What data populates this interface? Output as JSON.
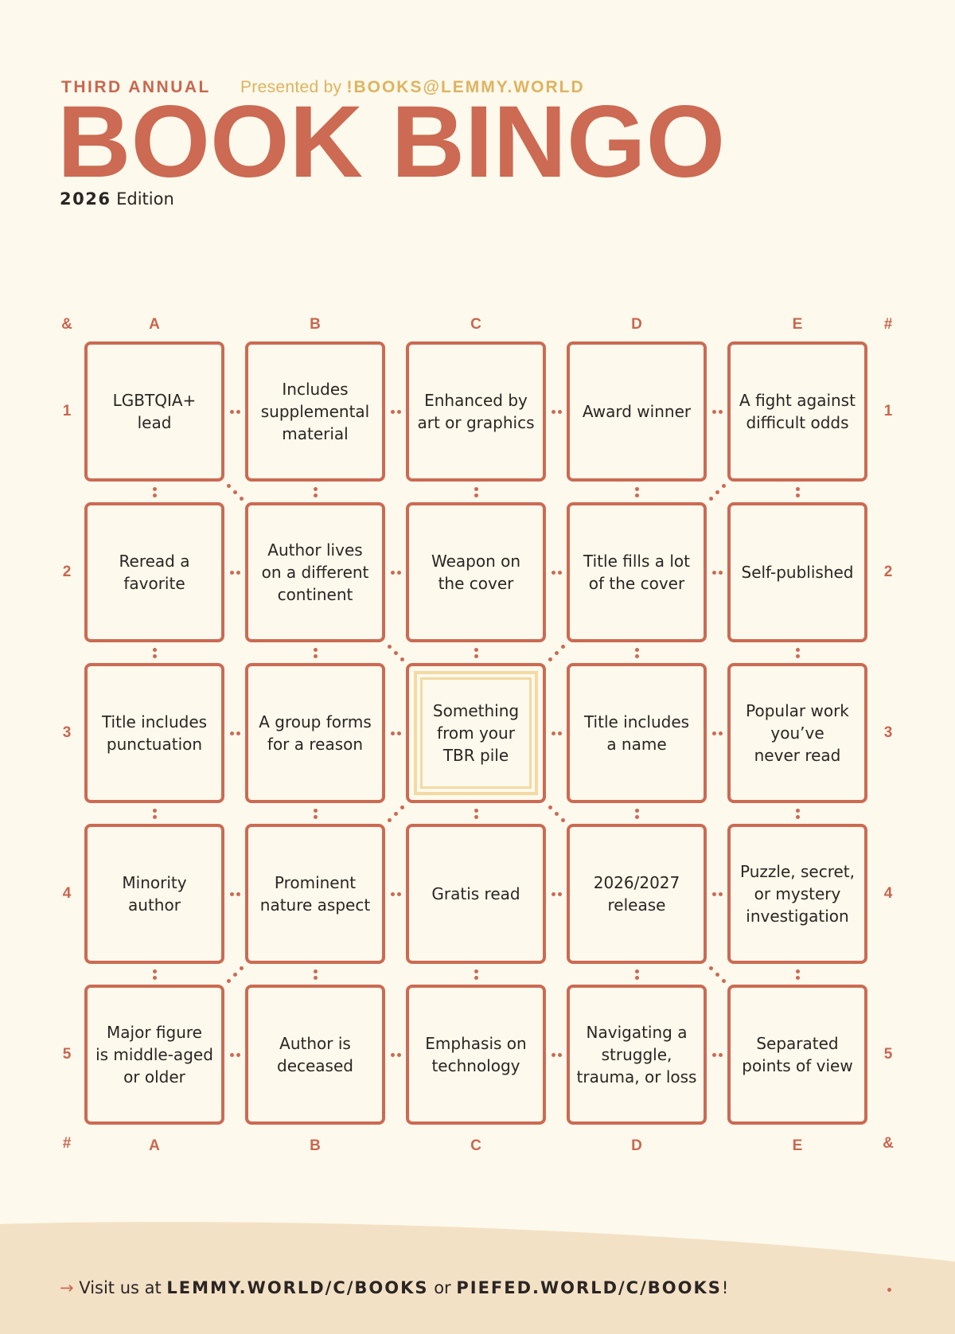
{
  "header": {
    "kicker": "THIRD ANNUAL",
    "presented_prefix": "Presented by ",
    "presented_community": "!BOOKS@LEMMY.WORLD",
    "title": "BOOK BINGO",
    "edition_year": "2026",
    "edition_suffix": " Edition"
  },
  "grid": {
    "corner_top_left": "&",
    "corner_top_right": "#",
    "corner_bottom_left": "#",
    "corner_bottom_right": "&",
    "columns": [
      "A",
      "B",
      "C",
      "D",
      "E"
    ],
    "rows": [
      "1",
      "2",
      "3",
      "4",
      "5"
    ],
    "cells": [
      [
        [
          "LGBTQIA+",
          "lead"
        ],
        [
          "Includes",
          "supplemental",
          "material"
        ],
        [
          "Enhanced by",
          "art or graphics"
        ],
        [
          "Award winner"
        ],
        [
          "A fight against",
          "difficult odds"
        ]
      ],
      [
        [
          "Reread a",
          "favorite"
        ],
        [
          "Author lives",
          "on a different",
          "continent"
        ],
        [
          "Weapon on",
          "the cover"
        ],
        [
          "Title fills a lot",
          "of the cover"
        ],
        [
          "Self-published"
        ]
      ],
      [
        [
          "Title includes",
          "punctuation"
        ],
        [
          "A group forms",
          "for a reason"
        ],
        [
          "Something",
          "from your",
          "TBR pile"
        ],
        [
          "Title includes",
          "a name"
        ],
        [
          "Popular work",
          "you’ve",
          "never read"
        ]
      ],
      [
        [
          "Minority author"
        ],
        [
          "Prominent",
          "nature aspect"
        ],
        [
          "Gratis read"
        ],
        [
          "2026/2027",
          "release"
        ],
        [
          "Puzzle, secret,",
          "or mystery",
          "investigation"
        ]
      ],
      [
        [
          "Major figure",
          "is middle-aged",
          "or older"
        ],
        [
          "Author is",
          "deceased"
        ],
        [
          "Emphasis on",
          "technology"
        ],
        [
          "Navigating a",
          "struggle,",
          "trauma, or loss"
        ],
        [
          "Separated",
          "points of view"
        ]
      ]
    ],
    "free_space": {
      "row": 3,
      "column": "C"
    }
  },
  "footer": {
    "arrow": "→",
    "prefix": " Visit us at ",
    "url1": "LEMMY.WORLD/C/BOOKS",
    "middle": " or ",
    "url2": "PIEFED.WORLD/C/BOOKS",
    "suffix": "!"
  },
  "colors": {
    "background": "#fdf9ec",
    "accent": "#cc6a53",
    "gold": "#deb35f",
    "free_frame": "#f3d9a4",
    "footer_band": "#f3e1c6",
    "text": "#2b2523"
  }
}
